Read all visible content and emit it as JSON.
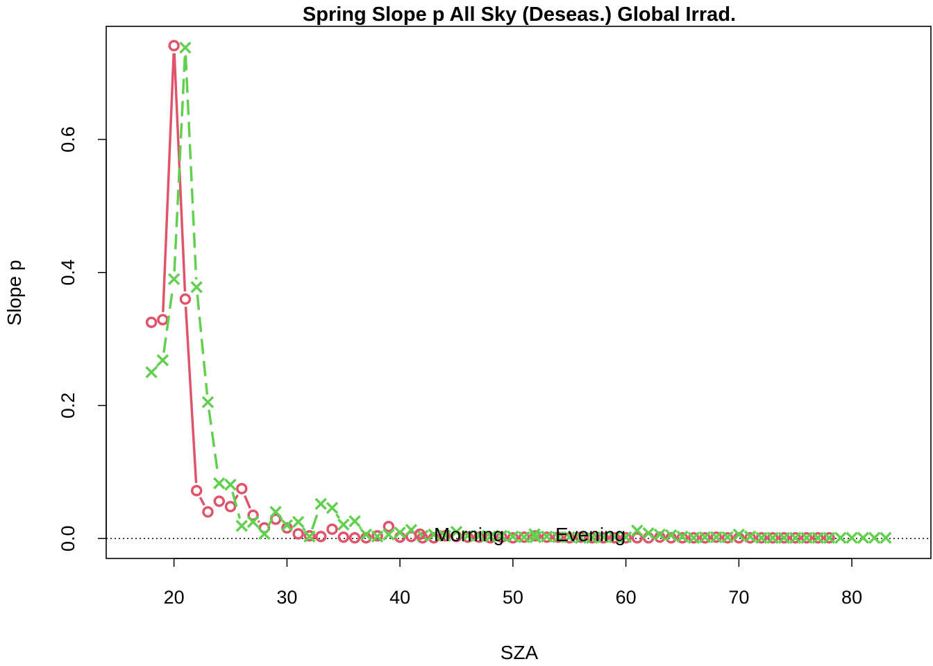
{
  "chart_data": {
    "type": "line",
    "title": "Spring Slope p All Sky (Deseas.) Global Irrad.",
    "xlabel": "SZA",
    "ylabel": "Slope p",
    "xlim": [
      14,
      87
    ],
    "ylim": [
      -0.03,
      0.77
    ],
    "x_ticks": [
      20,
      30,
      40,
      50,
      60,
      70,
      80
    ],
    "y_ticks": [
      0.0,
      0.2,
      0.4,
      0.6
    ],
    "x_tick_labels": [
      "20",
      "30",
      "40",
      "50",
      "60",
      "70",
      "80"
    ],
    "y_tick_labels": [
      "0.0",
      "0.2",
      "0.4",
      "0.6"
    ],
    "reference_line": {
      "y": 0,
      "style": "dotted"
    },
    "legend_position": "inside-bottom-center",
    "grid": false,
    "series": [
      {
        "name": "Morning",
        "color": "#DF536B",
        "marker": "circle",
        "line": "solid",
        "x": [
          18,
          19,
          20,
          21,
          22,
          23,
          24,
          25,
          26,
          27,
          28,
          29,
          30,
          31,
          32,
          33,
          34,
          35,
          36,
          37,
          38,
          39,
          40,
          41,
          42,
          43,
          44,
          45,
          46,
          47,
          48,
          49,
          50,
          51,
          52,
          53,
          54,
          55,
          56,
          57,
          58,
          59,
          60,
          61,
          62,
          63,
          64,
          65,
          66,
          67,
          68,
          69,
          70,
          71,
          72,
          73,
          74,
          75,
          76,
          77,
          78
        ],
        "y": [
          0.325,
          0.329,
          0.741,
          0.36,
          0.072,
          0.04,
          0.056,
          0.048,
          0.075,
          0.035,
          0.016,
          0.029,
          0.016,
          0.007,
          0.004,
          0.003,
          0.014,
          0.002,
          0.001,
          0.001,
          0.004,
          0.018,
          0.002,
          0.003,
          0.001,
          0.001,
          0.004,
          0.003,
          0.002,
          0.002,
          0.001,
          0.002,
          0.001,
          0.002,
          0.004,
          0.002,
          0.002,
          0.001,
          0.002,
          0.001,
          0.001,
          0.001,
          0.001,
          0.001,
          0.001,
          0.002,
          0.001,
          0.001,
          0.001,
          0.001,
          0.002,
          0.001,
          0.001,
          0.001,
          0.001,
          0.001,
          0.001,
          0.001,
          0.001,
          0.001,
          0.001
        ]
      },
      {
        "name": "Evening",
        "color": "#61D04F",
        "marker": "x",
        "line": "dashed",
        "x": [
          18,
          19,
          20,
          21,
          22,
          23,
          24,
          25,
          26,
          27,
          28,
          29,
          30,
          31,
          32,
          33,
          34,
          35,
          36,
          37,
          38,
          39,
          40,
          41,
          42,
          43,
          44,
          45,
          46,
          47,
          48,
          49,
          50,
          51,
          52,
          53,
          54,
          55,
          56,
          57,
          58,
          59,
          60,
          61,
          62,
          63,
          64,
          65,
          66,
          67,
          68,
          69,
          70,
          71,
          72,
          73,
          74,
          75,
          76,
          77,
          78,
          79,
          80,
          81,
          82,
          83
        ],
        "y": [
          0.25,
          0.268,
          0.39,
          0.738,
          0.378,
          0.205,
          0.083,
          0.081,
          0.019,
          0.025,
          0.007,
          0.04,
          0.02,
          0.025,
          0.003,
          0.052,
          0.046,
          0.021,
          0.026,
          0.006,
          0.003,
          0.006,
          0.009,
          0.013,
          0.004,
          0.006,
          0.004,
          0.01,
          0.004,
          0.004,
          0.003,
          0.004,
          0.003,
          0.002,
          0.002,
          0.003,
          0.002,
          0.002,
          0.001,
          0.001,
          0.002,
          0.002,
          0.002,
          0.012,
          0.008,
          0.006,
          0.005,
          0.003,
          0.001,
          0.002,
          0.002,
          0.002,
          0.006,
          0.003,
          0.001,
          0.001,
          0.001,
          0.001,
          0.001,
          0.001,
          0.001,
          0.001,
          0.001,
          0.001,
          0.001,
          0.001
        ]
      }
    ]
  }
}
